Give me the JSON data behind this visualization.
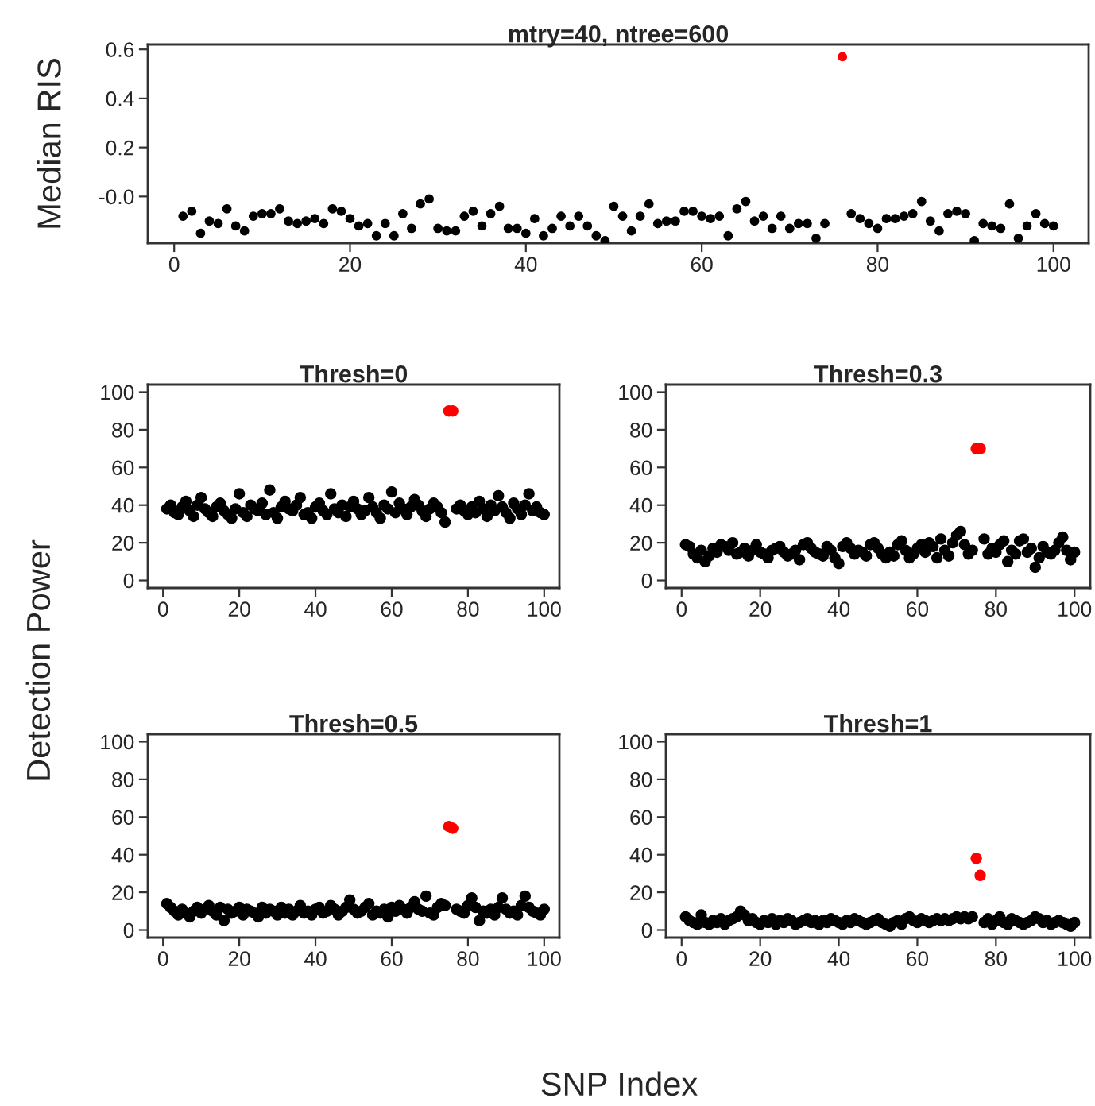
{
  "chart_data": [
    {
      "type": "scatter",
      "title": "mtry=40, ntree=600",
      "ylabel": "Median RIS",
      "marker": "circle",
      "grid": false,
      "x": [
        1,
        2,
        3,
        4,
        5,
        6,
        7,
        8,
        9,
        10,
        11,
        12,
        13,
        14,
        15,
        16,
        17,
        18,
        19,
        20,
        21,
        22,
        23,
        24,
        25,
        26,
        27,
        28,
        29,
        30,
        31,
        32,
        33,
        34,
        35,
        36,
        37,
        38,
        39,
        40,
        41,
        42,
        43,
        44,
        45,
        46,
        47,
        48,
        49,
        50,
        51,
        52,
        53,
        54,
        55,
        56,
        57,
        58,
        59,
        60,
        61,
        62,
        63,
        64,
        65,
        66,
        67,
        68,
        69,
        70,
        71,
        72,
        73,
        74,
        75,
        76,
        77,
        78,
        79,
        80,
        81,
        82,
        83,
        84,
        85,
        86,
        87,
        88,
        89,
        90,
        91,
        92,
        93,
        94,
        95,
        96,
        97,
        98,
        99,
        100
      ],
      "series": [
        {
          "color": "#000000",
          "values": [
            -0.08,
            -0.06,
            -0.15,
            -0.1,
            -0.11,
            -0.05,
            -0.12,
            -0.14,
            -0.08,
            -0.07,
            -0.07,
            -0.05,
            -0.1,
            -0.11,
            -0.1,
            -0.09,
            -0.11,
            -0.05,
            -0.06,
            -0.09,
            -0.12,
            -0.11,
            -0.16,
            -0.11,
            -0.16,
            -0.07,
            -0.13,
            -0.03,
            -0.01,
            -0.13,
            -0.14,
            -0.14,
            -0.08,
            -0.06,
            -0.12,
            -0.07,
            -0.04,
            -0.13,
            -0.13,
            -0.15,
            -0.09,
            -0.16,
            -0.13,
            -0.08,
            -0.12,
            -0.08,
            -0.12,
            -0.16,
            -0.18,
            -0.04,
            -0.08,
            -0.14,
            -0.08,
            -0.03,
            -0.11,
            -0.1,
            -0.1,
            -0.06,
            -0.06,
            -0.08,
            -0.09,
            -0.08,
            -0.16,
            -0.05,
            -0.02,
            -0.1,
            -0.08,
            -0.13,
            -0.08,
            -0.13,
            -0.11,
            -0.11,
            -0.17,
            -0.11,
            null,
            null,
            -0.07,
            -0.09,
            -0.11,
            -0.13,
            -0.09,
            -0.09,
            -0.08,
            -0.07,
            -0.02,
            -0.1,
            -0.14,
            -0.07,
            -0.06,
            -0.07,
            -0.18,
            -0.11,
            -0.12,
            -0.13,
            -0.03,
            -0.17,
            -0.12,
            -0.07,
            -0.11,
            -0.12
          ]
        },
        {
          "color": "#ff0000",
          "values": [
            null,
            null,
            null,
            null,
            null,
            null,
            null,
            null,
            null,
            null,
            null,
            null,
            null,
            null,
            null,
            null,
            null,
            null,
            null,
            null,
            null,
            null,
            null,
            null,
            null,
            null,
            null,
            null,
            null,
            null,
            null,
            null,
            null,
            null,
            null,
            null,
            null,
            null,
            null,
            null,
            null,
            null,
            null,
            null,
            null,
            null,
            null,
            null,
            null,
            null,
            null,
            null,
            null,
            null,
            null,
            null,
            null,
            null,
            null,
            null,
            null,
            null,
            null,
            null,
            null,
            null,
            null,
            null,
            null,
            null,
            null,
            null,
            null,
            null,
            null,
            0.57,
            null,
            null,
            null,
            null,
            null,
            null,
            null,
            null,
            null,
            null,
            null,
            null,
            null,
            null,
            null,
            null,
            null,
            null,
            null,
            null,
            null,
            null,
            null,
            null
          ]
        }
      ],
      "xlim": [
        -3,
        104
      ],
      "xticks": [
        0,
        20,
        40,
        60,
        80,
        100
      ],
      "ylim": [
        -0.19,
        0.62
      ],
      "yticks": [
        {
          "value": 0,
          "label": "-0.0"
        },
        0.2,
        0.4,
        0.6
      ]
    },
    {
      "type": "scatter",
      "title": "Thresh=0",
      "ylabel": "Detection Power",
      "marker": "circle",
      "grid": false,
      "x": [
        1,
        2,
        3,
        4,
        5,
        6,
        7,
        8,
        9,
        10,
        11,
        12,
        13,
        14,
        15,
        16,
        17,
        18,
        19,
        20,
        21,
        22,
        23,
        24,
        25,
        26,
        27,
        28,
        29,
        30,
        31,
        32,
        33,
        34,
        35,
        36,
        37,
        38,
        39,
        40,
        41,
        42,
        43,
        44,
        45,
        46,
        47,
        48,
        49,
        50,
        51,
        52,
        53,
        54,
        55,
        56,
        57,
        58,
        59,
        60,
        61,
        62,
        63,
        64,
        65,
        66,
        67,
        68,
        69,
        70,
        71,
        72,
        73,
        74,
        75,
        76,
        77,
        78,
        79,
        80,
        81,
        82,
        83,
        84,
        85,
        86,
        87,
        88,
        89,
        90,
        91,
        92,
        93,
        94,
        95,
        96,
        97,
        98,
        99,
        100
      ],
      "series": [
        {
          "color": "#000000",
          "values": [
            38,
            40,
            36,
            35,
            39,
            42,
            37,
            34,
            40,
            44,
            38,
            36,
            34,
            39,
            41,
            37,
            35,
            33,
            38,
            46,
            36,
            34,
            40,
            38,
            37,
            41,
            35,
            48,
            36,
            33,
            39,
            42,
            38,
            37,
            40,
            44,
            35,
            36,
            33,
            39,
            41,
            37,
            35,
            46,
            38,
            36,
            40,
            34,
            39,
            42,
            38,
            35,
            37,
            44,
            39,
            36,
            33,
            40,
            38,
            47,
            36,
            41,
            38,
            35,
            39,
            43,
            40,
            37,
            34,
            38,
            41,
            39,
            36,
            31,
            null,
            null,
            38,
            40,
            37,
            35,
            39,
            36,
            42,
            38,
            34,
            40,
            37,
            45,
            39,
            36,
            33,
            41,
            38,
            35,
            40,
            46,
            37,
            39,
            36,
            35
          ]
        },
        {
          "color": "#ff0000",
          "values": [
            null,
            null,
            null,
            null,
            null,
            null,
            null,
            null,
            null,
            null,
            null,
            null,
            null,
            null,
            null,
            null,
            null,
            null,
            null,
            null,
            null,
            null,
            null,
            null,
            null,
            null,
            null,
            null,
            null,
            null,
            null,
            null,
            null,
            null,
            null,
            null,
            null,
            null,
            null,
            null,
            null,
            null,
            null,
            null,
            null,
            null,
            null,
            null,
            null,
            null,
            null,
            null,
            null,
            null,
            null,
            null,
            null,
            null,
            null,
            null,
            null,
            null,
            null,
            null,
            null,
            null,
            null,
            null,
            null,
            null,
            null,
            null,
            null,
            null,
            90,
            90,
            null,
            null,
            null,
            null,
            null,
            null,
            null,
            null,
            null,
            null,
            null,
            null,
            null,
            null,
            null,
            null,
            null,
            null,
            null,
            null,
            null,
            null,
            null,
            null
          ]
        }
      ],
      "xlim": [
        -4,
        104
      ],
      "xticks": [
        0,
        20,
        40,
        60,
        80,
        100
      ],
      "ylim": [
        -4,
        104
      ],
      "yticks": [
        0,
        20,
        40,
        60,
        80,
        100
      ]
    },
    {
      "type": "scatter",
      "title": "Thresh=0.3",
      "marker": "circle",
      "grid": false,
      "x": [
        1,
        2,
        3,
        4,
        5,
        6,
        7,
        8,
        9,
        10,
        11,
        12,
        13,
        14,
        15,
        16,
        17,
        18,
        19,
        20,
        21,
        22,
        23,
        24,
        25,
        26,
        27,
        28,
        29,
        30,
        31,
        32,
        33,
        34,
        35,
        36,
        37,
        38,
        39,
        40,
        41,
        42,
        43,
        44,
        45,
        46,
        47,
        48,
        49,
        50,
        51,
        52,
        53,
        54,
        55,
        56,
        57,
        58,
        59,
        60,
        61,
        62,
        63,
        64,
        65,
        66,
        67,
        68,
        69,
        70,
        71,
        72,
        73,
        74,
        75,
        76,
        77,
        78,
        79,
        80,
        81,
        82,
        83,
        84,
        85,
        86,
        87,
        88,
        89,
        90,
        91,
        92,
        93,
        94,
        95,
        96,
        97,
        98,
        99,
        100
      ],
      "series": [
        {
          "color": "#000000",
          "values": [
            19,
            18,
            14,
            12,
            16,
            10,
            13,
            17,
            15,
            19,
            18,
            16,
            20,
            14,
            15,
            17,
            13,
            16,
            19,
            15,
            14,
            12,
            16,
            17,
            18,
            15,
            13,
            14,
            16,
            11,
            19,
            20,
            17,
            15,
            14,
            13,
            18,
            16,
            12,
            9,
            18,
            20,
            17,
            14,
            16,
            15,
            13,
            19,
            20,
            17,
            14,
            12,
            15,
            13,
            19,
            21,
            16,
            12,
            14,
            17,
            19,
            15,
            20,
            18,
            12,
            22,
            16,
            13,
            20,
            24,
            26,
            19,
            14,
            16,
            null,
            null,
            22,
            14,
            17,
            15,
            19,
            21,
            10,
            16,
            14,
            21,
            22,
            15,
            17,
            7,
            12,
            18,
            15,
            14,
            16,
            20,
            23,
            16,
            11,
            15
          ]
        },
        {
          "color": "#ff0000",
          "values": [
            null,
            null,
            null,
            null,
            null,
            null,
            null,
            null,
            null,
            null,
            null,
            null,
            null,
            null,
            null,
            null,
            null,
            null,
            null,
            null,
            null,
            null,
            null,
            null,
            null,
            null,
            null,
            null,
            null,
            null,
            null,
            null,
            null,
            null,
            null,
            null,
            null,
            null,
            null,
            null,
            null,
            null,
            null,
            null,
            null,
            null,
            null,
            null,
            null,
            null,
            null,
            null,
            null,
            null,
            null,
            null,
            null,
            null,
            null,
            null,
            null,
            null,
            null,
            null,
            null,
            null,
            null,
            null,
            null,
            null,
            null,
            null,
            null,
            null,
            70,
            70,
            null,
            null,
            null,
            null,
            null,
            null,
            null,
            null,
            null,
            null,
            null,
            null,
            null,
            null,
            null,
            null,
            null,
            null,
            null,
            null,
            null,
            null,
            null,
            null
          ]
        }
      ],
      "xlim": [
        -4,
        104
      ],
      "xticks": [
        0,
        20,
        40,
        60,
        80,
        100
      ],
      "ylim": [
        -4,
        104
      ],
      "yticks": [
        0,
        20,
        40,
        60,
        80,
        100
      ]
    },
    {
      "type": "scatter",
      "title": "Thresh=0.5",
      "marker": "circle",
      "grid": false,
      "x": [
        1,
        2,
        3,
        4,
        5,
        6,
        7,
        8,
        9,
        10,
        11,
        12,
        13,
        14,
        15,
        16,
        17,
        18,
        19,
        20,
        21,
        22,
        23,
        24,
        25,
        26,
        27,
        28,
        29,
        30,
        31,
        32,
        33,
        34,
        35,
        36,
        37,
        38,
        39,
        40,
        41,
        42,
        43,
        44,
        45,
        46,
        47,
        48,
        49,
        50,
        51,
        52,
        53,
        54,
        55,
        56,
        57,
        58,
        59,
        60,
        61,
        62,
        63,
        64,
        65,
        66,
        67,
        68,
        69,
        70,
        71,
        72,
        73,
        74,
        75,
        76,
        77,
        78,
        79,
        80,
        81,
        82,
        83,
        84,
        85,
        86,
        87,
        88,
        89,
        90,
        91,
        92,
        93,
        94,
        95,
        96,
        97,
        98,
        99,
        100
      ],
      "series": [
        {
          "color": "#000000",
          "values": [
            14,
            12,
            10,
            8,
            11,
            9,
            7,
            10,
            12,
            9,
            11,
            13,
            10,
            8,
            12,
            5,
            11,
            9,
            10,
            12,
            8,
            11,
            10,
            9,
            7,
            12,
            9,
            11,
            10,
            8,
            12,
            9,
            11,
            8,
            10,
            13,
            9,
            10,
            8,
            11,
            12,
            9,
            10,
            13,
            11,
            8,
            10,
            12,
            16,
            11,
            9,
            10,
            12,
            14,
            8,
            10,
            9,
            11,
            7,
            12,
            10,
            13,
            11,
            9,
            12,
            15,
            11,
            10,
            18,
            9,
            8,
            12,
            14,
            13,
            null,
            null,
            11,
            10,
            9,
            13,
            17,
            12,
            5,
            10,
            9,
            11,
            8,
            12,
            17,
            11,
            9,
            10,
            8,
            13,
            18,
            12,
            10,
            9,
            8,
            11
          ]
        },
        {
          "color": "#ff0000",
          "values": [
            null,
            null,
            null,
            null,
            null,
            null,
            null,
            null,
            null,
            null,
            null,
            null,
            null,
            null,
            null,
            null,
            null,
            null,
            null,
            null,
            null,
            null,
            null,
            null,
            null,
            null,
            null,
            null,
            null,
            null,
            null,
            null,
            null,
            null,
            null,
            null,
            null,
            null,
            null,
            null,
            null,
            null,
            null,
            null,
            null,
            null,
            null,
            null,
            null,
            null,
            null,
            null,
            null,
            null,
            null,
            null,
            null,
            null,
            null,
            null,
            null,
            null,
            null,
            null,
            null,
            null,
            null,
            null,
            null,
            null,
            null,
            null,
            null,
            null,
            55,
            54,
            null,
            null,
            null,
            null,
            null,
            null,
            null,
            null,
            null,
            null,
            null,
            null,
            null,
            null,
            null,
            null,
            null,
            null,
            null,
            null,
            null,
            null,
            null,
            null
          ]
        }
      ],
      "xlim": [
        -4,
        104
      ],
      "xticks": [
        0,
        20,
        40,
        60,
        80,
        100
      ],
      "ylim": [
        -4,
        104
      ],
      "yticks": [
        0,
        20,
        40,
        60,
        80,
        100
      ]
    },
    {
      "type": "scatter",
      "title": "Thresh=1",
      "xlabel": "SNP Index",
      "marker": "circle",
      "grid": false,
      "x": [
        1,
        2,
        3,
        4,
        5,
        6,
        7,
        8,
        9,
        10,
        11,
        12,
        13,
        14,
        15,
        16,
        17,
        18,
        19,
        20,
        21,
        22,
        23,
        24,
        25,
        26,
        27,
        28,
        29,
        30,
        31,
        32,
        33,
        34,
        35,
        36,
        37,
        38,
        39,
        40,
        41,
        42,
        43,
        44,
        45,
        46,
        47,
        48,
        49,
        50,
        51,
        52,
        53,
        54,
        55,
        56,
        57,
        58,
        59,
        60,
        61,
        62,
        63,
        64,
        65,
        66,
        67,
        68,
        69,
        70,
        71,
        72,
        73,
        74,
        75,
        76,
        77,
        78,
        79,
        80,
        81,
        82,
        83,
        84,
        85,
        86,
        87,
        88,
        89,
        90,
        91,
        92,
        93,
        94,
        95,
        96,
        97,
        98,
        99,
        100
      ],
      "series": [
        {
          "color": "#000000",
          "values": [
            7,
            5,
            4,
            3,
            8,
            4,
            3,
            5,
            4,
            6,
            3,
            5,
            6,
            7,
            10,
            8,
            5,
            6,
            4,
            3,
            5,
            4,
            6,
            3,
            5,
            4,
            6,
            5,
            3,
            4,
            5,
            6,
            4,
            5,
            3,
            5,
            4,
            6,
            5,
            4,
            3,
            5,
            4,
            6,
            5,
            4,
            3,
            4,
            5,
            6,
            4,
            3,
            2,
            4,
            5,
            3,
            6,
            7,
            5,
            4,
            6,
            5,
            4,
            5,
            6,
            5,
            6,
            5,
            6,
            7,
            6,
            7,
            6,
            7,
            null,
            null,
            4,
            6,
            3,
            5,
            7,
            4,
            3,
            6,
            5,
            4,
            3,
            4,
            5,
            7,
            6,
            4,
            5,
            3,
            4,
            5,
            4,
            3,
            2,
            4
          ]
        },
        {
          "color": "#ff0000",
          "values": [
            null,
            null,
            null,
            null,
            null,
            null,
            null,
            null,
            null,
            null,
            null,
            null,
            null,
            null,
            null,
            null,
            null,
            null,
            null,
            null,
            null,
            null,
            null,
            null,
            null,
            null,
            null,
            null,
            null,
            null,
            null,
            null,
            null,
            null,
            null,
            null,
            null,
            null,
            null,
            null,
            null,
            null,
            null,
            null,
            null,
            null,
            null,
            null,
            null,
            null,
            null,
            null,
            null,
            null,
            null,
            null,
            null,
            null,
            null,
            null,
            null,
            null,
            null,
            null,
            null,
            null,
            null,
            null,
            null,
            null,
            null,
            null,
            null,
            null,
            38,
            29,
            null,
            null,
            null,
            null,
            null,
            null,
            null,
            null,
            null,
            null,
            null,
            null,
            null,
            null,
            null,
            null,
            null,
            null,
            null,
            null,
            null,
            null,
            null,
            null
          ]
        }
      ],
      "xlim": [
        -4,
        104
      ],
      "xticks": [
        0,
        20,
        40,
        60,
        80,
        100
      ],
      "ylim": [
        -4,
        104
      ],
      "yticks": [
        0,
        20,
        40,
        60,
        80,
        100
      ]
    }
  ]
}
